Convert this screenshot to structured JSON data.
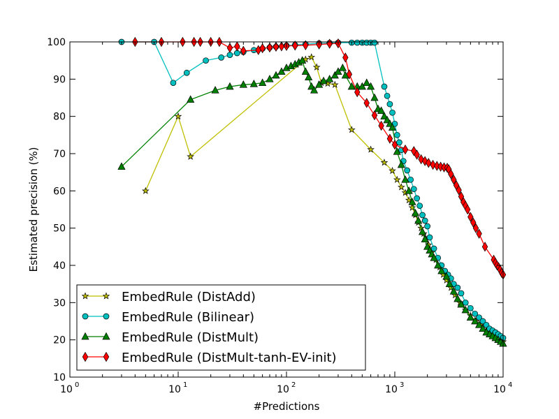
{
  "chart_data": {
    "type": "line",
    "xscale": "log",
    "xlim": [
      1,
      10000
    ],
    "ylim": [
      10,
      100
    ],
    "xlabel": "#Predictions",
    "ylabel": "Estimated precision (%)",
    "x_ticks": [
      {
        "value": 1,
        "base": "10",
        "exp": "0"
      },
      {
        "value": 10,
        "base": "10",
        "exp": "1"
      },
      {
        "value": 100,
        "base": "10",
        "exp": "2"
      },
      {
        "value": 1000,
        "base": "10",
        "exp": "3"
      },
      {
        "value": 10000,
        "base": "10",
        "exp": "4"
      }
    ],
    "y_ticks": [
      "10",
      "20",
      "30",
      "40",
      "50",
      "60",
      "70",
      "80",
      "90",
      "100"
    ],
    "legend_position": "lower-left",
    "series": [
      {
        "name": "EmbedRule (DistAdd)",
        "color": "#bfbf00",
        "marker": "star",
        "points": [
          [
            5,
            60
          ],
          [
            10,
            80
          ],
          [
            13,
            69.2
          ],
          [
            150,
            95.3
          ],
          [
            170,
            95.9
          ],
          [
            190,
            93.2
          ],
          [
            210,
            89
          ],
          [
            240,
            88.8
          ],
          [
            280,
            88.5
          ],
          [
            400,
            76.4
          ],
          [
            600,
            71.1
          ],
          [
            800,
            67.6
          ],
          [
            950,
            65.4
          ],
          [
            1050,
            63
          ],
          [
            1150,
            61
          ],
          [
            1250,
            59.5
          ],
          [
            1350,
            57.5
          ],
          [
            1450,
            55.5
          ],
          [
            1550,
            53.5
          ],
          [
            1650,
            51.5
          ],
          [
            1750,
            50
          ],
          [
            1850,
            48.5
          ],
          [
            1950,
            47
          ],
          [
            2050,
            45.5
          ],
          [
            2200,
            43.5
          ],
          [
            2400,
            41.5
          ],
          [
            2600,
            39.5
          ],
          [
            2800,
            37.5
          ],
          [
            3000,
            36
          ],
          [
            3300,
            34
          ],
          [
            3600,
            32
          ],
          [
            4000,
            30
          ],
          [
            4500,
            28
          ],
          [
            5000,
            26.5
          ],
          [
            5600,
            25
          ],
          [
            6200,
            24
          ],
          [
            7000,
            22.5
          ],
          [
            8000,
            21.5
          ],
          [
            9000,
            20.5
          ],
          [
            10000,
            19.5
          ]
        ]
      },
      {
        "name": "EmbedRule (Bilinear)",
        "color": "#00bfbf",
        "marker": "circle",
        "points": [
          [
            3,
            100
          ],
          [
            6,
            100
          ],
          [
            9,
            89
          ],
          [
            12,
            91.7
          ],
          [
            18,
            95
          ],
          [
            25,
            95.8
          ],
          [
            30,
            96.5
          ],
          [
            35,
            97
          ],
          [
            40,
            97.3
          ],
          [
            50,
            97.8
          ],
          [
            60,
            98.2
          ],
          [
            70,
            98.5
          ],
          [
            80,
            98.7
          ],
          [
            100,
            99
          ],
          [
            120,
            99.2
          ],
          [
            150,
            99.4
          ],
          [
            200,
            99.6
          ],
          [
            250,
            99.7
          ],
          [
            300,
            99.8
          ],
          [
            400,
            99.8
          ],
          [
            450,
            99.8
          ],
          [
            500,
            99.8
          ],
          [
            550,
            99.8
          ],
          [
            600,
            99.8
          ],
          [
            650,
            99.8
          ],
          [
            800,
            88
          ],
          [
            850,
            85.5
          ],
          [
            900,
            83.3
          ],
          [
            950,
            81
          ],
          [
            1000,
            78
          ],
          [
            1050,
            75
          ],
          [
            1100,
            73
          ],
          [
            1150,
            71
          ],
          [
            1200,
            68
          ],
          [
            1300,
            65.5
          ],
          [
            1400,
            63
          ],
          [
            1500,
            60.5
          ],
          [
            1600,
            58
          ],
          [
            1700,
            56
          ],
          [
            1800,
            53.5
          ],
          [
            1900,
            52
          ],
          [
            2000,
            50.5
          ],
          [
            2100,
            47.5
          ],
          [
            2300,
            44.5
          ],
          [
            2500,
            42
          ],
          [
            2700,
            40
          ],
          [
            2900,
            38.5
          ],
          [
            3100,
            37.5
          ],
          [
            3300,
            36.5
          ],
          [
            3500,
            35
          ],
          [
            3800,
            34
          ],
          [
            4100,
            32.5
          ],
          [
            4500,
            30
          ],
          [
            5000,
            28.5
          ],
          [
            5500,
            27
          ],
          [
            6000,
            26
          ],
          [
            6500,
            25
          ],
          [
            7000,
            24
          ],
          [
            7500,
            23
          ],
          [
            8000,
            22.5
          ],
          [
            8500,
            22
          ],
          [
            9000,
            21.5
          ],
          [
            9500,
            21
          ],
          [
            10000,
            20.5
          ]
        ]
      },
      {
        "name": "EmbedRule (DistMult)",
        "color": "#008000",
        "marker": "triangle",
        "points": [
          [
            3,
            66.5
          ],
          [
            13,
            84.5
          ],
          [
            22,
            87
          ],
          [
            30,
            88
          ],
          [
            40,
            88.5
          ],
          [
            50,
            88.7
          ],
          [
            60,
            89
          ],
          [
            70,
            90
          ],
          [
            80,
            91
          ],
          [
            90,
            92
          ],
          [
            100,
            93
          ],
          [
            110,
            93.5
          ],
          [
            120,
            94
          ],
          [
            130,
            94.5
          ],
          [
            140,
            95
          ],
          [
            150,
            92
          ],
          [
            160,
            90.5
          ],
          [
            170,
            88
          ],
          [
            180,
            87
          ],
          [
            200,
            88.5
          ],
          [
            220,
            89.5
          ],
          [
            250,
            90
          ],
          [
            280,
            91
          ],
          [
            300,
            92
          ],
          [
            330,
            93
          ],
          [
            350,
            91
          ],
          [
            400,
            88
          ],
          [
            450,
            88
          ],
          [
            500,
            88
          ],
          [
            550,
            89
          ],
          [
            600,
            88
          ],
          [
            650,
            85
          ],
          [
            700,
            82
          ],
          [
            750,
            81.5
          ],
          [
            800,
            80
          ],
          [
            850,
            79
          ],
          [
            900,
            78
          ],
          [
            950,
            77
          ],
          [
            1050,
            70.5
          ],
          [
            1150,
            67
          ],
          [
            1250,
            63
          ],
          [
            1350,
            60
          ],
          [
            1450,
            57
          ],
          [
            1550,
            54
          ],
          [
            1650,
            52
          ],
          [
            1800,
            49
          ],
          [
            1900,
            47
          ],
          [
            2000,
            45
          ],
          [
            2100,
            44
          ],
          [
            2200,
            43
          ],
          [
            2300,
            42
          ],
          [
            2500,
            40
          ],
          [
            2700,
            38.5
          ],
          [
            3000,
            37
          ],
          [
            3200,
            35
          ],
          [
            3500,
            33
          ],
          [
            3800,
            31
          ],
          [
            4100,
            29.5
          ],
          [
            4500,
            28
          ],
          [
            5000,
            26
          ],
          [
            5500,
            25
          ],
          [
            6000,
            24
          ],
          [
            6500,
            23
          ],
          [
            7000,
            22
          ],
          [
            7500,
            21.5
          ],
          [
            8000,
            21
          ],
          [
            8500,
            20.5
          ],
          [
            9000,
            20
          ],
          [
            9500,
            19.5
          ],
          [
            10000,
            19
          ]
        ]
      },
      {
        "name": "EmbedRule (DistMult-tanh-EV-init)",
        "color": "#ff0000",
        "marker": "diamond",
        "points": [
          [
            4,
            100
          ],
          [
            7,
            100
          ],
          [
            11,
            100
          ],
          [
            14,
            100
          ],
          [
            16,
            100
          ],
          [
            20,
            100
          ],
          [
            24,
            100
          ],
          [
            30,
            98.4
          ],
          [
            35,
            98.8
          ],
          [
            40,
            97.6
          ],
          [
            55,
            97.8
          ],
          [
            60,
            98.3
          ],
          [
            70,
            98.5
          ],
          [
            80,
            98.7
          ],
          [
            90,
            98.8
          ],
          [
            100,
            98.9
          ],
          [
            120,
            99
          ],
          [
            150,
            99.1
          ],
          [
            200,
            99.3
          ],
          [
            250,
            99.5
          ],
          [
            300,
            99.6
          ],
          [
            350,
            95.8
          ],
          [
            380,
            91.3
          ],
          [
            450,
            86.5
          ],
          [
            550,
            83.6
          ],
          [
            650,
            80.3
          ],
          [
            750,
            77.5
          ],
          [
            900,
            74
          ],
          [
            1000,
            72.4
          ],
          [
            1250,
            71.1
          ],
          [
            1500,
            70.7
          ],
          [
            1600,
            69.7
          ],
          [
            1750,
            68.5
          ],
          [
            1900,
            68
          ],
          [
            2050,
            67.5
          ],
          [
            2250,
            67
          ],
          [
            2450,
            66.7
          ],
          [
            2650,
            66.5
          ],
          [
            2850,
            66.3
          ],
          [
            3050,
            66.2
          ],
          [
            3150,
            65.8
          ],
          [
            3300,
            64.5
          ],
          [
            3500,
            63
          ],
          [
            3700,
            61.5
          ],
          [
            3900,
            60.2
          ],
          [
            4100,
            58.5
          ],
          [
            4300,
            57
          ],
          [
            4500,
            56
          ],
          [
            4700,
            55
          ],
          [
            5000,
            53
          ],
          [
            5300,
            51.5
          ],
          [
            5600,
            50
          ],
          [
            6000,
            48.5
          ],
          [
            6800,
            45
          ],
          [
            8200,
            41.5
          ],
          [
            8500,
            40.7
          ],
          [
            8800,
            40
          ],
          [
            9100,
            39.5
          ],
          [
            9400,
            38.8
          ],
          [
            9700,
            38
          ],
          [
            10000,
            37.5
          ]
        ]
      }
    ]
  }
}
